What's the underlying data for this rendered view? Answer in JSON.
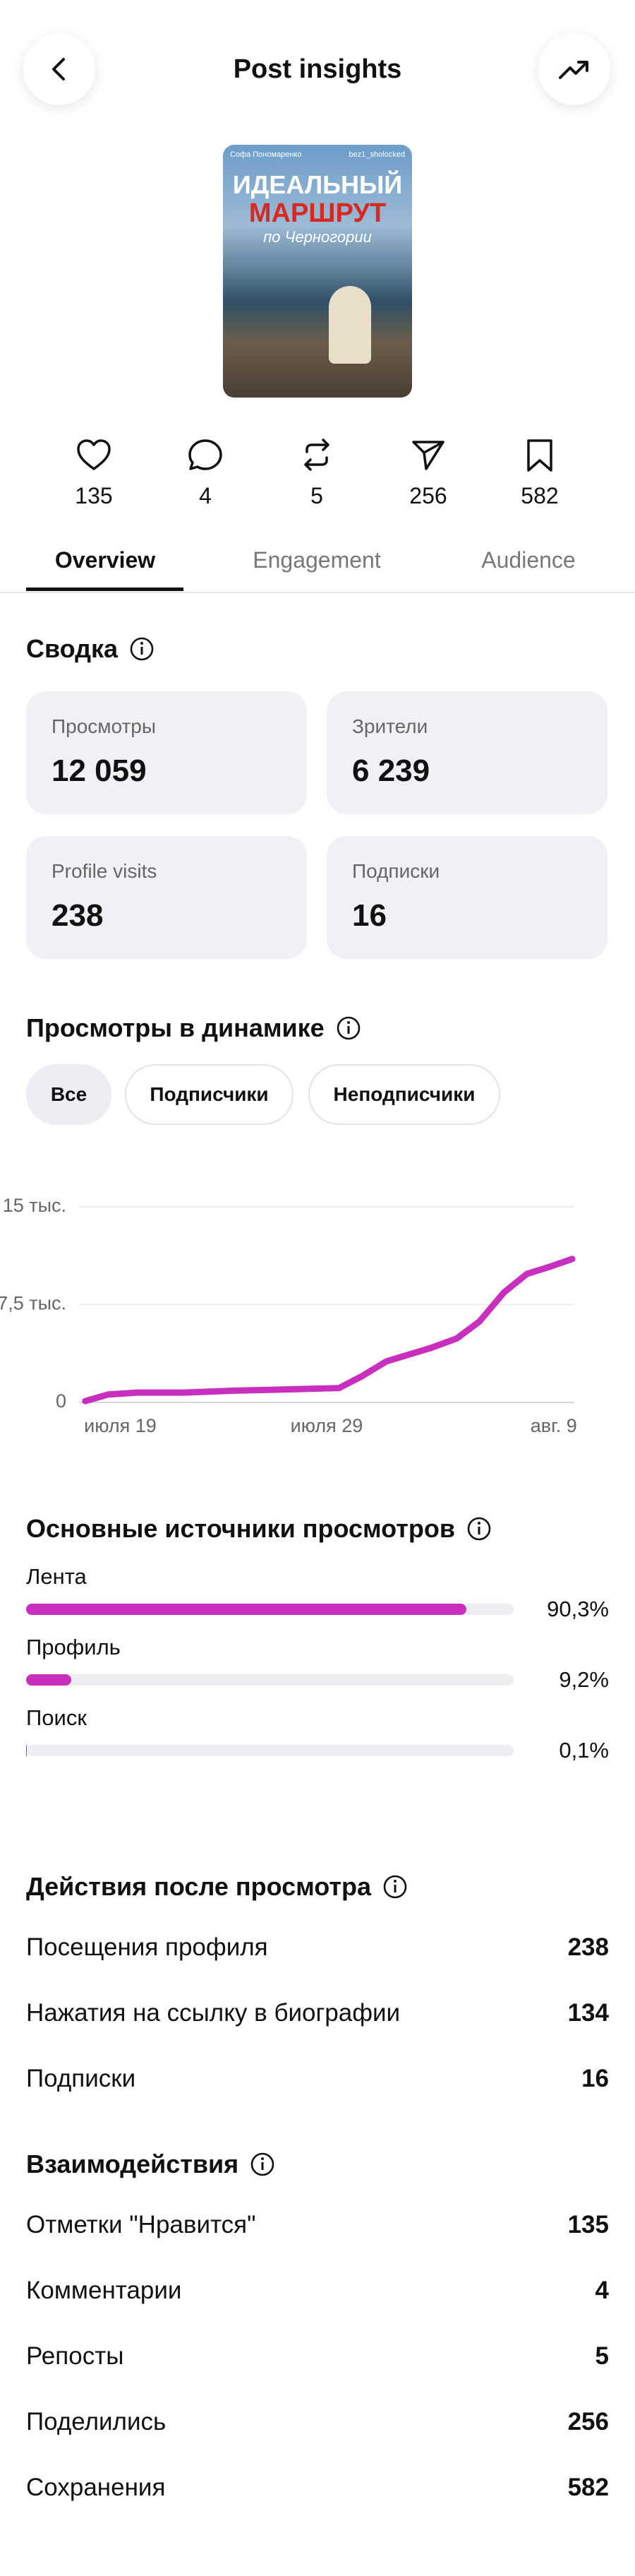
{
  "header": {
    "title": "Post insights"
  },
  "post": {
    "author": "Софа Пономаренко",
    "handle": "bez1_sholocked",
    "headline": "ИДЕАЛЬНЫЙ",
    "headline_accent": "МАРШРУТ",
    "subline": "по Черногории"
  },
  "stats": [
    135,
    4,
    5,
    256,
    582
  ],
  "tabs": [
    "Overview",
    "Engagement",
    "Audience"
  ],
  "summary": {
    "title": "Сводка",
    "cards": [
      {
        "label": "Просмотры",
        "value": "12 059"
      },
      {
        "label": "Зрители",
        "value": "6 239"
      },
      {
        "label": "Profile visits",
        "value": "238"
      },
      {
        "label": "Подписки",
        "value": "16"
      }
    ]
  },
  "filters": [
    "Все",
    "Подписчики",
    "Неподписчики"
  ],
  "chart_data": {
    "type": "line",
    "title": "Просмотры в динамике",
    "x": [
      0.3,
      1.4,
      2.8,
      5.1,
      7.5,
      10.2,
      12.6,
      13.7,
      14.9,
      17,
      18.3,
      19.4,
      20.6,
      21.7,
      22.9,
      23.9
    ],
    "xlim": [
      0,
      24
    ],
    "xticks": [
      {
        "value": 2,
        "label": "июля 19"
      },
      {
        "value": 12,
        "label": "июля 29"
      },
      {
        "value": 23,
        "label": "авг. 9"
      }
    ],
    "ylim": [
      0,
      15000
    ],
    "yticks": [
      0,
      {
        "value": 7500,
        "label": "7,5 тыс."
      },
      {
        "value": 15000,
        "label": "15 тыс."
      }
    ],
    "grid": true,
    "series": [
      {
        "color": "#c92fbf",
        "values": [
          100,
          600,
          750,
          750,
          900,
          1000,
          1100,
          2000,
          3150,
          4150,
          4900,
          6200,
          8450,
          9850,
          10450,
          11000
        ]
      }
    ]
  },
  "sources": {
    "title": "Основные источники просмотров",
    "xlim": [
      0,
      100
    ],
    "color": "#c92fbf",
    "items": [
      {
        "name": "Лента",
        "value": 90.3,
        "value_label": "90,3%"
      },
      {
        "name": "Профиль",
        "value": 9.2,
        "value_label": "9,2%"
      },
      {
        "name": "Поиск",
        "value": 0.1,
        "value_label": "0,1%"
      }
    ]
  },
  "actions": {
    "title": "Действия после просмотра",
    "rows": [
      {
        "label": "Посещения профиля",
        "value": 238
      },
      {
        "label": "Нажатия на ссылку в биографии",
        "value": 134
      },
      {
        "label": "Подписки",
        "value": 16
      }
    ]
  },
  "interactions": {
    "title": "Взаимодействия",
    "rows": [
      {
        "label": "Отметки \"Нравится\"",
        "value": 135
      },
      {
        "label": "Комментарии",
        "value": 4
      },
      {
        "label": "Репосты",
        "value": 5
      },
      {
        "label": "Поделились",
        "value": 256
      },
      {
        "label": "Сохранения",
        "value": 582
      }
    ]
  }
}
